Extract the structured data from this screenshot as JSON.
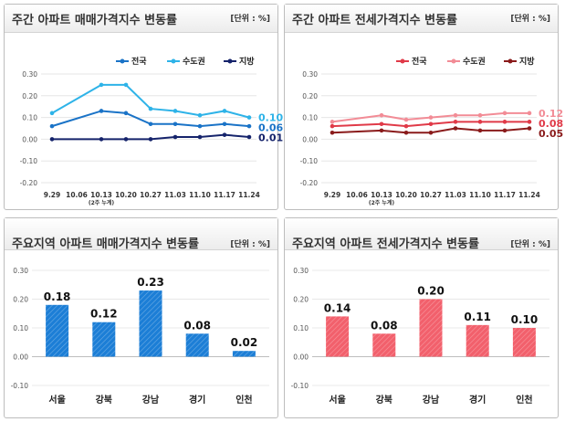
{
  "chart_data": [
    {
      "type": "line",
      "title": "주간 아파트 매매가격지수 변동률",
      "unit": "[단위 : %]",
      "categories": [
        "9.29",
        "10.06",
        "10.13",
        "10.20",
        "10.27",
        "11.03",
        "11.10",
        "11.17",
        "11.24"
      ],
      "category_note": "(2주 누계)",
      "yticks": [
        "0.30",
        "0.20",
        "0.10",
        "0.00",
        "-0.10",
        "-0.20"
      ],
      "ylim": [
        -0.2,
        0.3
      ],
      "legend_position": "top",
      "series": [
        {
          "name": "전국",
          "color": "#1a73c7",
          "values": [
            0.06,
            null,
            0.13,
            0.12,
            0.07,
            0.07,
            0.06,
            0.07,
            0.06
          ],
          "end_label": "0.06"
        },
        {
          "name": "수도권",
          "color": "#2eb3e8",
          "values": [
            0.12,
            null,
            0.25,
            0.25,
            0.14,
            0.13,
            0.11,
            0.13,
            0.1
          ],
          "end_label": "0.10"
        },
        {
          "name": "지방",
          "color": "#15236b",
          "values": [
            0.0,
            null,
            0.0,
            0.0,
            0.0,
            0.01,
            0.01,
            0.02,
            0.01
          ],
          "end_label": "0.01"
        }
      ]
    },
    {
      "type": "line",
      "title": "주간 아파트 전세가격지수 변동률",
      "unit": "[단위 : %]",
      "categories": [
        "9.29",
        "10.06",
        "10.13",
        "10.20",
        "10.27",
        "11.03",
        "11.10",
        "11.17",
        "11.24"
      ],
      "category_note": "(2주 누계)",
      "yticks": [
        "0.30",
        "0.20",
        "0.10",
        "0.00",
        "-0.10",
        "-0.20"
      ],
      "ylim": [
        -0.2,
        0.3
      ],
      "legend_position": "top",
      "series": [
        {
          "name": "전국",
          "color": "#e03a48",
          "values": [
            0.06,
            null,
            0.07,
            0.06,
            0.07,
            0.08,
            0.08,
            0.08,
            0.08
          ],
          "end_label": "0.08"
        },
        {
          "name": "수도권",
          "color": "#f28c96",
          "values": [
            0.08,
            null,
            0.11,
            0.09,
            0.1,
            0.11,
            0.11,
            0.12,
            0.12
          ],
          "end_label": "0.12"
        },
        {
          "name": "지방",
          "color": "#8a1b1b",
          "values": [
            0.03,
            null,
            0.04,
            0.03,
            0.03,
            0.05,
            0.04,
            0.04,
            0.05
          ],
          "end_label": "0.05"
        }
      ]
    },
    {
      "type": "bar",
      "title": "주요지역 아파트 매매가격지수 변동률",
      "unit": "[단위 : %]",
      "categories": [
        "서울",
        "강북",
        "강남",
        "경기",
        "인천"
      ],
      "values": [
        0.18,
        0.12,
        0.23,
        0.08,
        0.02
      ],
      "value_labels": [
        "0.18",
        "0.12",
        "0.23",
        "0.08",
        "0.02"
      ],
      "yticks": [
        "0.30",
        "0.20",
        "0.10",
        "0.00",
        "-0.10"
      ],
      "ylim": [
        -0.1,
        0.3
      ],
      "color": "#1c7ed6"
    },
    {
      "type": "bar",
      "title": "주요지역 아파트 전세가격지수 변동률",
      "unit": "[단위 : %]",
      "categories": [
        "서울",
        "강북",
        "강남",
        "경기",
        "인천"
      ],
      "values": [
        0.14,
        0.08,
        0.2,
        0.11,
        0.1
      ],
      "value_labels": [
        "0.14",
        "0.08",
        "0.20",
        "0.11",
        "0.10"
      ],
      "yticks": [
        "0.30",
        "0.20",
        "0.10",
        "0.00",
        "-0.10"
      ],
      "ylim": [
        -0.1,
        0.3
      ],
      "color": "#f2606c"
    }
  ]
}
